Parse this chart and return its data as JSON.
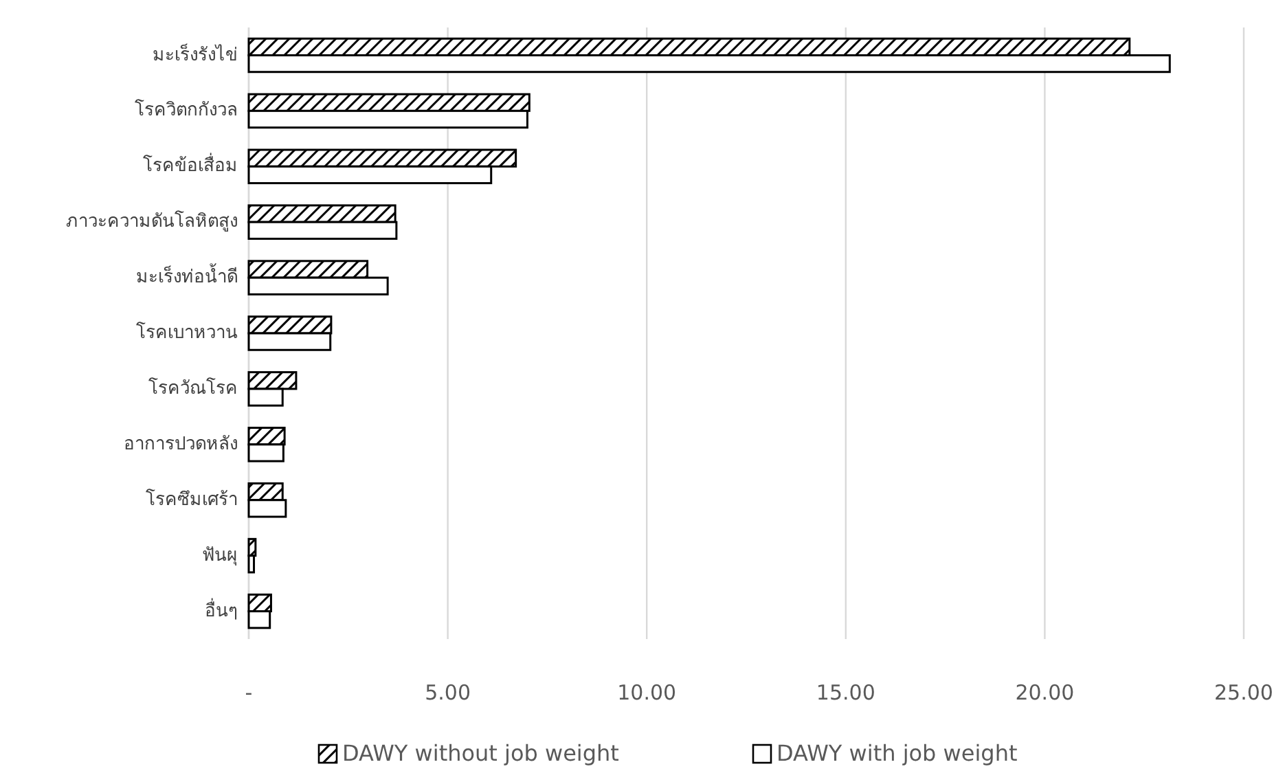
{
  "chart_data": {
    "type": "bar",
    "orientation": "horizontal",
    "categories": [
      "มะเร็งรังไข่",
      "โรควิตกกังวล",
      "โรคข้อเสื่อม",
      "ภาวะความดันโลหิตสูง",
      "มะเร็งท่อน้ำดี",
      "โรคเบาหวาน",
      "โรควัณโรค",
      "อาการปวดหลัง",
      "โรคซึมเศร้า",
      "ฟันผุ",
      "อื่นๆ"
    ],
    "series": [
      {
        "name": "DAWY without job weight",
        "color": "#000000",
        "values": [
          22.13,
          7.05,
          6.71,
          3.68,
          2.98,
          2.07,
          1.19,
          0.9,
          0.85,
          0.17,
          0.56
        ]
      },
      {
        "name": "DAWY with job weight",
        "color": "#ffffff",
        "values": [
          23.14,
          7.0,
          6.09,
          3.71,
          3.49,
          2.05,
          0.85,
          0.87,
          0.93,
          0.13,
          0.53
        ]
      }
    ],
    "xlim": [
      0,
      25
    ],
    "xticks": [
      {
        "value": 0,
        "label": "-"
      },
      {
        "value": 5,
        "label": "5.00"
      },
      {
        "value": 10,
        "label": "10.00"
      },
      {
        "value": 15,
        "label": "15.00"
      },
      {
        "value": 20,
        "label": "20.00"
      },
      {
        "value": 25,
        "label": "25.00"
      }
    ],
    "grid": "x",
    "legend": "bottom"
  }
}
